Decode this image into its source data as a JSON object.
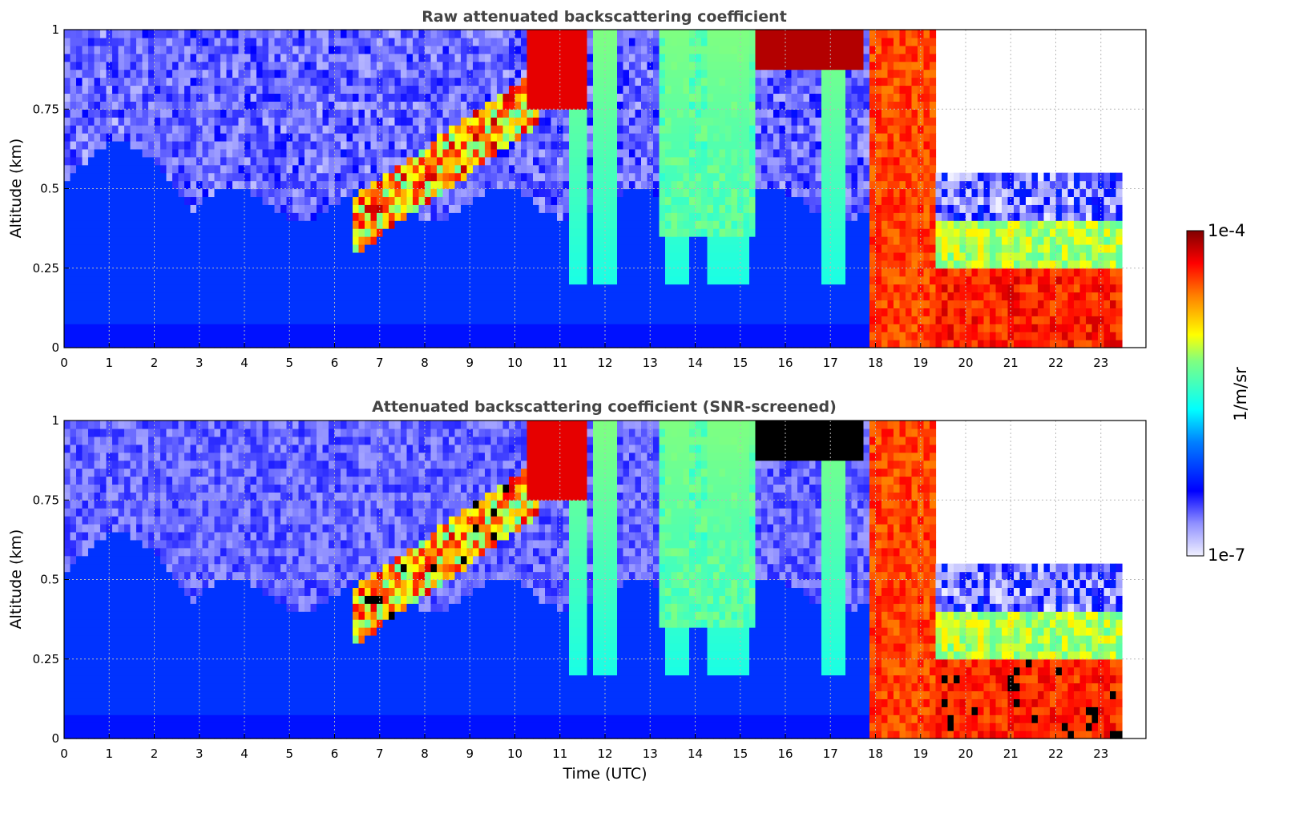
{
  "chart_data": [
    {
      "type": "heatmap",
      "title": "Raw attenuated backscattering coefficient",
      "xlabel": "",
      "ylabel": "Altitude (km)",
      "xlim": [
        0,
        24
      ],
      "ylim": [
        0,
        1
      ],
      "xticks": [
        0,
        1,
        2,
        3,
        4,
        5,
        6,
        7,
        8,
        9,
        10,
        11,
        12,
        13,
        14,
        15,
        16,
        17,
        18,
        19,
        20,
        21,
        22,
        23
      ],
      "yticks": [
        0,
        0.25,
        0.5,
        0.75,
        1
      ],
      "ytick_labels": [
        "0",
        "0.25",
        "0.5",
        "0.75",
        "1"
      ],
      "grid": true,
      "screened": false,
      "data_end_hour": 23.5
    },
    {
      "type": "heatmap",
      "title": "Attenuated backscattering coefficient (SNR-screened)",
      "xlabel": "Time (UTC)",
      "ylabel": "Altitude (km)",
      "xlim": [
        0,
        24
      ],
      "ylim": [
        0,
        1
      ],
      "xticks": [
        0,
        1,
        2,
        3,
        4,
        5,
        6,
        7,
        8,
        9,
        10,
        11,
        12,
        13,
        14,
        15,
        16,
        17,
        18,
        19,
        20,
        21,
        22,
        23
      ],
      "yticks": [
        0,
        0.25,
        0.5,
        0.75,
        1
      ],
      "ytick_labels": [
        "0",
        "0.25",
        "0.5",
        "0.75",
        "1"
      ],
      "grid": true,
      "screened": true,
      "data_end_hour": 23.5
    }
  ],
  "colorbar": {
    "label": "1/m/sr",
    "max_label": "1e-4",
    "min_label": "1e-7",
    "log_min": -7,
    "log_max": -4,
    "colormap": "jet-white",
    "stops": [
      "#f0f0ff",
      "#0000ff",
      "#00ffff",
      "#ffff00",
      "#ff0000",
      "#800000"
    ]
  }
}
